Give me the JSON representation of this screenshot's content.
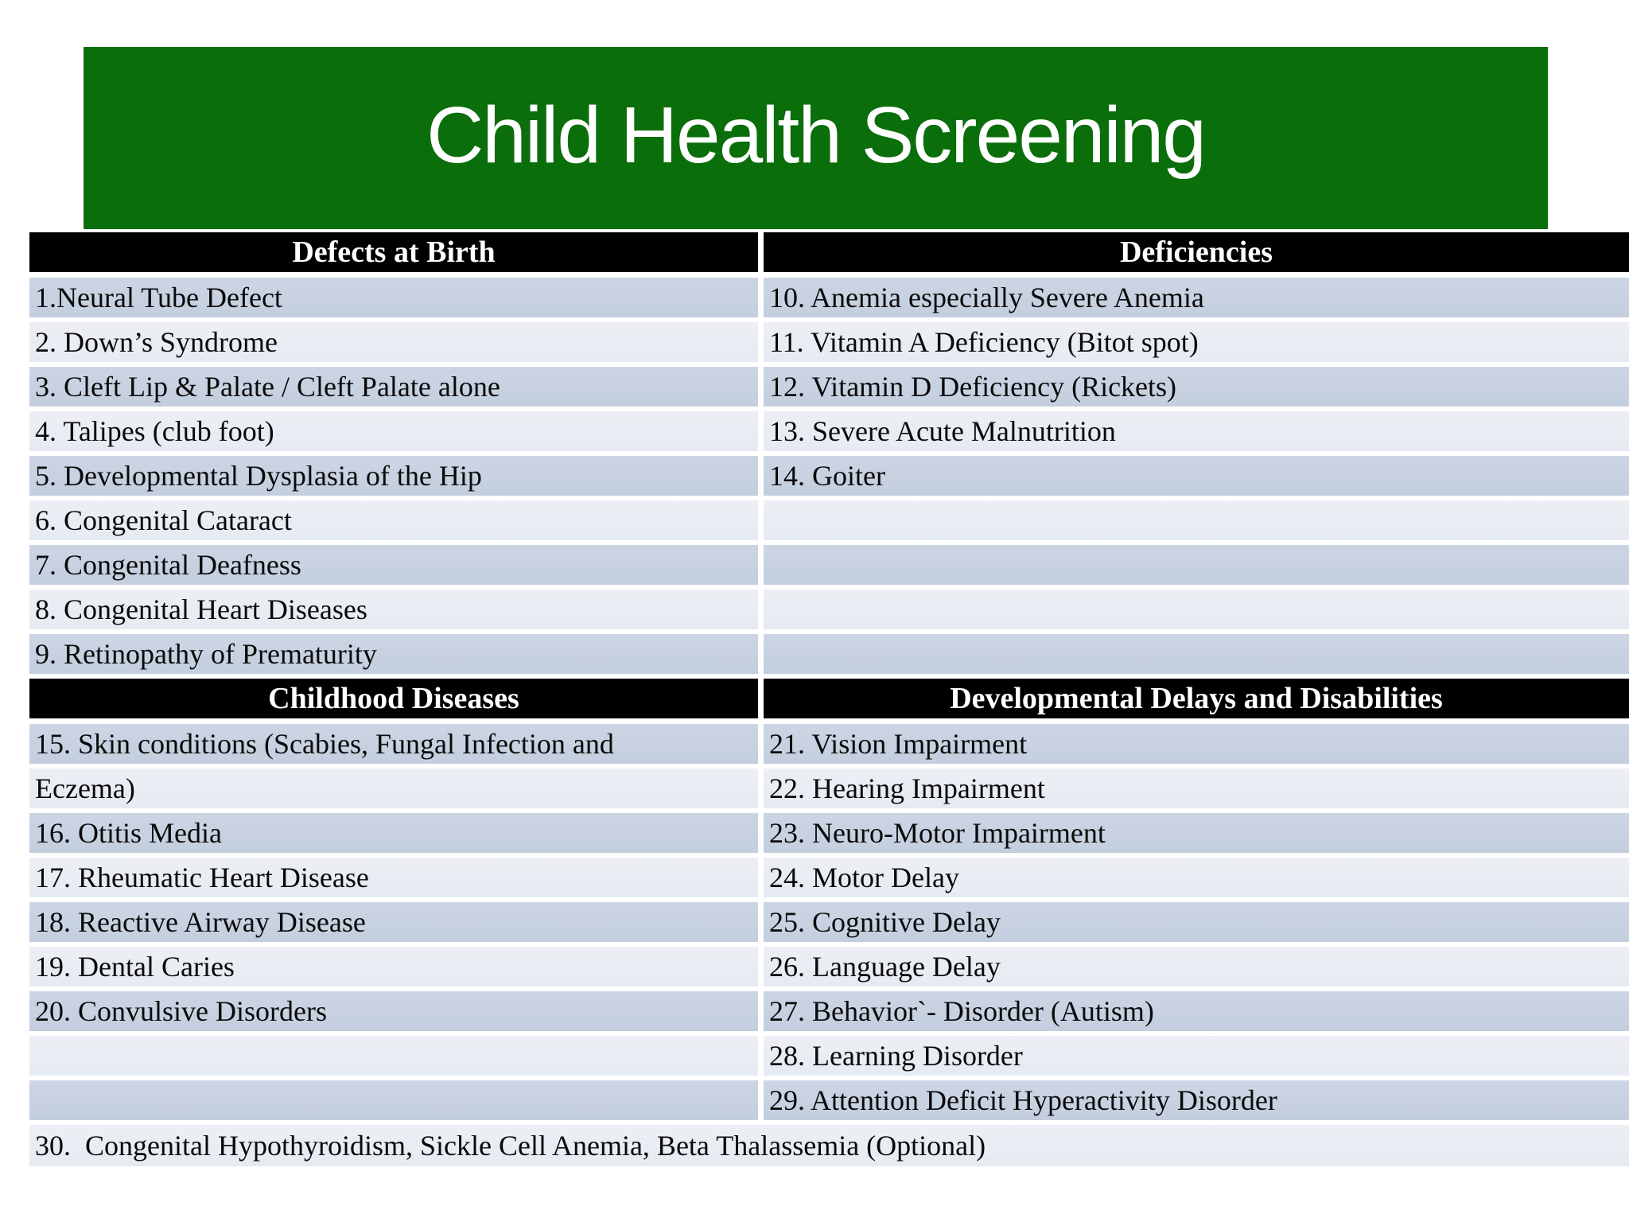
{
  "title": "Child Health Screening",
  "colors": {
    "banner_green": "#0a6e0a",
    "header_bg": "#000000",
    "header_text": "#ffffff",
    "row_dark": "#c6d0e2",
    "row_light": "#e9ecf3",
    "body_text": "#0a0a0a"
  },
  "table": {
    "section1": {
      "left_header": "Defects at Birth",
      "right_header": "Deficiencies",
      "rows": [
        {
          "left": "1.Neural Tube Defect",
          "right": "10. Anemia especially Severe Anemia"
        },
        {
          "left": "2. Down’s Syndrome",
          "right": "11. Vitamin A Deficiency (Bitot spot)"
        },
        {
          "left": "3. Cleft Lip & Palate / Cleft Palate alone",
          "right": "12. Vitamin D Deficiency (Rickets)"
        },
        {
          "left": "4. Talipes (club foot)",
          "right": "13. Severe Acute Malnutrition"
        },
        {
          "left": "5. Developmental Dysplasia of the Hip",
          "right": "14. Goiter"
        },
        {
          "left": "6. Congenital Cataract",
          "right": ""
        },
        {
          "left": "7. Congenital Deafness",
          "right": ""
        },
        {
          "left": "8. Congenital Heart Diseases",
          "right": ""
        },
        {
          "left": "9. Retinopathy of Prematurity",
          "right": ""
        }
      ]
    },
    "section2": {
      "left_header": "Childhood Diseases",
      "right_header": "Developmental Delays and Disabilities",
      "rows": [
        {
          "left": "15. Skin conditions (Scabies, Fungal Infection and",
          "right": "21. Vision Impairment"
        },
        {
          "left": "Eczema)",
          "right": "22. Hearing Impairment"
        },
        {
          "left": "16. Otitis Media",
          "right": "23. Neuro-Motor Impairment"
        },
        {
          "left": "17. Rheumatic Heart Disease",
          "right": "24. Motor Delay"
        },
        {
          "left": "18. Reactive Airway Disease",
          "right": "25. Cognitive Delay"
        },
        {
          "left": "19. Dental Caries",
          "right": "26. Language Delay"
        },
        {
          "left": "20. Convulsive Disorders",
          "right": "27. Behavior`- Disorder (Autism)"
        },
        {
          "left": "",
          "right": "28. Learning Disorder"
        },
        {
          "left": "",
          "right": "29. Attention Deficit Hyperactivity Disorder"
        }
      ]
    },
    "footer_row": "30.  Congenital Hypothyroidism, Sickle Cell Anemia, Beta Thalassemia (Optional)"
  }
}
